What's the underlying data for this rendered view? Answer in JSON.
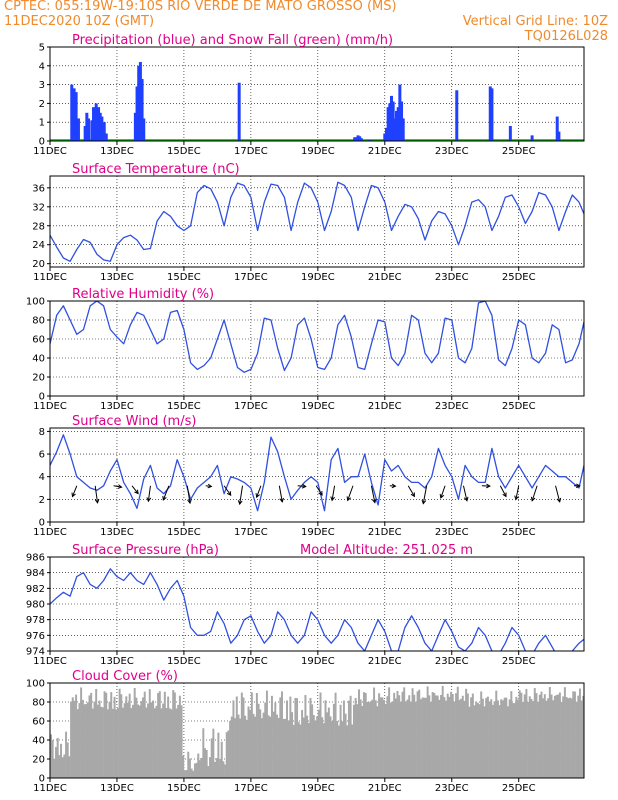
{
  "header": {
    "line1_left": "CPTEC:   055:19W-19:10S  RIO VERDE DE MATO GROSSO (MS)",
    "line2_left": "11DEC2020 10Z (GMT)",
    "line2_right": "Vertical Grid Line: 10Z",
    "line3_right": "TQ0126L028"
  },
  "colors": {
    "precip": "#2040ff",
    "snow": "#00b000",
    "line": "#3050e0",
    "cloud": "#a8a8a8",
    "title": "#e0008a",
    "header": "#f08a2c"
  },
  "x_labels": [
    "11DEC",
    "13DEC",
    "15DEC",
    "17DEC",
    "19DEC",
    "21DEC",
    "23DEC",
    "25DEC"
  ],
  "chart_data": [
    {
      "type": "bar",
      "title": "Precipitation (blue) and Snow Fall (green) (mm/h)",
      "ylim": [
        0,
        5
      ],
      "yticks": [
        0,
        1,
        2,
        3,
        4,
        5
      ],
      "x_unit": "days since 11DEC 10Z",
      "bars": [
        [
          0.65,
          3.0
        ],
        [
          0.72,
          2.8
        ],
        [
          0.78,
          2.6
        ],
        [
          0.85,
          1.2
        ],
        [
          1.05,
          0.8
        ],
        [
          1.1,
          1.5
        ],
        [
          1.15,
          1.2
        ],
        [
          1.25,
          1.1
        ],
        [
          1.3,
          1.8
        ],
        [
          1.38,
          2.0
        ],
        [
          1.45,
          1.8
        ],
        [
          1.5,
          1.5
        ],
        [
          1.55,
          1.3
        ],
        [
          1.62,
          1.0
        ],
        [
          1.68,
          0.4
        ],
        [
          2.55,
          1.5
        ],
        [
          2.6,
          2.9
        ],
        [
          2.65,
          4.0
        ],
        [
          2.7,
          4.2
        ],
        [
          2.75,
          3.3
        ],
        [
          2.8,
          1.2
        ],
        [
          5.65,
          3.1
        ],
        [
          9.1,
          0.2
        ],
        [
          9.15,
          0.2
        ],
        [
          9.2,
          0.3
        ],
        [
          9.25,
          0.25
        ],
        [
          9.3,
          0.15
        ],
        [
          9.55,
          0.05
        ],
        [
          10.0,
          0.4
        ],
        [
          10.05,
          0.7
        ],
        [
          10.1,
          1.8
        ],
        [
          10.15,
          2.0
        ],
        [
          10.2,
          2.4
        ],
        [
          10.25,
          2.1
        ],
        [
          10.3,
          1.2
        ],
        [
          10.35,
          1.6
        ],
        [
          10.4,
          1.8
        ],
        [
          10.45,
          3.0
        ],
        [
          10.5,
          2.1
        ],
        [
          10.55,
          1.2
        ],
        [
          12.15,
          2.7
        ],
        [
          13.15,
          2.9
        ],
        [
          13.2,
          2.8
        ],
        [
          13.75,
          0.8
        ],
        [
          14.4,
          0.3
        ],
        [
          15.15,
          1.3
        ],
        [
          15.2,
          0.5
        ]
      ]
    },
    {
      "type": "line",
      "title": "Surface Temperature (nC)",
      "ylim": [
        19.3,
        38.5
      ],
      "yticks": [
        20,
        24,
        28,
        32,
        36
      ],
      "x": [
        0,
        0.2,
        0.4,
        0.6,
        0.8,
        1.0,
        1.2,
        1.4,
        1.6,
        1.8,
        2.0,
        2.2,
        2.4,
        2.6,
        2.8,
        3.0,
        3.2,
        3.4,
        3.6,
        3.8,
        4.0,
        4.2,
        4.4,
        4.6,
        4.8,
        5.0,
        5.2,
        5.4,
        5.6,
        5.8,
        6.0,
        6.2,
        6.4,
        6.6,
        6.8,
        7.0,
        7.2,
        7.4,
        7.6,
        7.8,
        8.0,
        8.2,
        8.4,
        8.6,
        8.8,
        9.0,
        9.2,
        9.4,
        9.6,
        9.8,
        10.0,
        10.2,
        10.4,
        10.6,
        10.8,
        11.0,
        11.2,
        11.4,
        11.6,
        11.8,
        12.0,
        12.2,
        12.4,
        12.6,
        12.8,
        13.0,
        13.2,
        13.4,
        13.6,
        13.8,
        14.0,
        14.2,
        14.4,
        14.6,
        14.8,
        15.0,
        15.2,
        15.4,
        15.6,
        15.8,
        15.95
      ],
      "values": [
        26,
        23.5,
        21.2,
        20.5,
        23,
        25.1,
        24.5,
        22,
        20.8,
        20.5,
        24,
        25.5,
        26,
        25,
        23,
        23.2,
        29,
        31,
        30,
        28,
        27,
        28,
        35,
        36.5,
        35.8,
        33,
        28,
        34,
        37,
        36.5,
        34,
        27,
        33,
        36.8,
        36.5,
        34,
        27,
        33,
        37,
        36,
        33,
        27,
        31,
        37.2,
        36.5,
        34,
        27,
        32,
        36.5,
        36,
        33,
        27,
        30,
        32.5,
        32,
        29.5,
        25,
        29,
        31,
        30.5,
        28,
        24,
        28,
        33,
        33.5,
        32,
        27,
        30,
        34,
        34.5,
        32,
        28.5,
        31,
        35,
        34.5,
        32,
        27,
        31,
        34.5,
        33,
        30.5
      ]
    },
    {
      "type": "line",
      "title": "Relative Humidity (%)",
      "ylim": [
        0,
        100
      ],
      "yticks": [
        0,
        20,
        40,
        60,
        80,
        100
      ],
      "x": [
        0,
        0.2,
        0.4,
        0.6,
        0.8,
        1.0,
        1.2,
        1.4,
        1.6,
        1.8,
        2.0,
        2.2,
        2.4,
        2.6,
        2.8,
        3.0,
        3.2,
        3.4,
        3.6,
        3.8,
        4.0,
        4.2,
        4.4,
        4.6,
        4.8,
        5.0,
        5.2,
        5.4,
        5.6,
        5.8,
        6.0,
        6.2,
        6.4,
        6.6,
        6.8,
        7.0,
        7.2,
        7.4,
        7.6,
        7.8,
        8.0,
        8.2,
        8.4,
        8.6,
        8.8,
        9.0,
        9.2,
        9.4,
        9.6,
        9.8,
        10.0,
        10.2,
        10.4,
        10.6,
        10.8,
        11.0,
        11.2,
        11.4,
        11.6,
        11.8,
        12.0,
        12.2,
        12.4,
        12.6,
        12.8,
        13.0,
        13.2,
        13.4,
        13.6,
        13.8,
        14.0,
        14.2,
        14.4,
        14.6,
        14.8,
        15.0,
        15.2,
        15.4,
        15.6,
        15.8,
        15.95
      ],
      "values": [
        55,
        85,
        95,
        80,
        65,
        70,
        95,
        100,
        95,
        70,
        62,
        55,
        75,
        88,
        85,
        70,
        55,
        60,
        88,
        90,
        70,
        35,
        28,
        32,
        40,
        60,
        80,
        55,
        30,
        25,
        28,
        45,
        82,
        80,
        50,
        27,
        40,
        75,
        82,
        60,
        30,
        28,
        40,
        75,
        85,
        62,
        30,
        28,
        55,
        80,
        78,
        40,
        32,
        45,
        85,
        80,
        45,
        35,
        45,
        82,
        80,
        40,
        35,
        50,
        98,
        100,
        85,
        38,
        32,
        50,
        80,
        75,
        40,
        35,
        45,
        75,
        70,
        35,
        38,
        55,
        78
      ]
    },
    {
      "type": "line",
      "title": "Surface Wind (m/s)",
      "ylim": [
        0,
        8.3
      ],
      "yticks": [
        0,
        2,
        4,
        6,
        8
      ],
      "x": [
        0,
        0.2,
        0.4,
        0.6,
        0.8,
        1.0,
        1.2,
        1.4,
        1.6,
        1.8,
        2.0,
        2.2,
        2.4,
        2.6,
        2.8,
        3.0,
        3.2,
        3.4,
        3.6,
        3.8,
        4.0,
        4.2,
        4.4,
        4.6,
        4.8,
        5.0,
        5.2,
        5.4,
        5.6,
        5.8,
        6.0,
        6.2,
        6.4,
        6.6,
        6.8,
        7.0,
        7.2,
        7.4,
        7.6,
        7.8,
        8.0,
        8.2,
        8.4,
        8.6,
        8.8,
        9.0,
        9.2,
        9.4,
        9.6,
        9.8,
        10.0,
        10.2,
        10.4,
        10.6,
        10.8,
        11.0,
        11.2,
        11.4,
        11.6,
        11.8,
        12.0,
        12.2,
        12.4,
        12.6,
        12.8,
        13.0,
        13.2,
        13.4,
        13.6,
        13.8,
        14.0,
        14.2,
        14.4,
        14.6,
        14.8,
        15.0,
        15.2,
        15.4,
        15.6,
        15.8,
        15.95
      ],
      "values": [
        5,
        6.2,
        7.7,
        6,
        4,
        3.5,
        3,
        2.8,
        3.2,
        4.5,
        5.5,
        3.5,
        2.5,
        1.2,
        3.8,
        5,
        3,
        2.5,
        3.2,
        5.5,
        4,
        2,
        3,
        3.5,
        4,
        5,
        2.5,
        4,
        3.8,
        3.5,
        3,
        1,
        3.5,
        7.5,
        6.2,
        4,
        2,
        2.8,
        3.5,
        4,
        3.5,
        1,
        5.5,
        6.5,
        3.5,
        4,
        4,
        6,
        3.5,
        1.5,
        5.5,
        4.5,
        5,
        4,
        3.5,
        3.5,
        3,
        4,
        6.5,
        5,
        4,
        2,
        5,
        4,
        3.5,
        3.5,
        6.5,
        4,
        3,
        4,
        5,
        4,
        3,
        4,
        5,
        4.5,
        4,
        4,
        3.5,
        3,
        5
      ]
    },
    {
      "type": "line",
      "title": "Surface Pressure (hPa)",
      "annotation": "Model Altitude: 251.025 m",
      "ylim": [
        974,
        986
      ],
      "yticks": [
        974,
        976,
        978,
        980,
        982,
        984,
        986
      ],
      "x": [
        0,
        0.2,
        0.4,
        0.6,
        0.8,
        1.0,
        1.2,
        1.4,
        1.6,
        1.8,
        2.0,
        2.2,
        2.4,
        2.6,
        2.8,
        3.0,
        3.2,
        3.4,
        3.6,
        3.8,
        4.0,
        4.2,
        4.4,
        4.6,
        4.8,
        5.0,
        5.2,
        5.4,
        5.6,
        5.8,
        6.0,
        6.2,
        6.4,
        6.6,
        6.8,
        7.0,
        7.2,
        7.4,
        7.6,
        7.8,
        8.0,
        8.2,
        8.4,
        8.6,
        8.8,
        9.0,
        9.2,
        9.4,
        9.6,
        9.8,
        10.0,
        10.2,
        10.4,
        10.6,
        10.8,
        11.0,
        11.2,
        11.4,
        11.6,
        11.8,
        12.0,
        12.2,
        12.4,
        12.6,
        12.8,
        13.0,
        13.2,
        13.4,
        13.6,
        13.8,
        14.0,
        14.2,
        14.4,
        14.6,
        14.8,
        15.0,
        15.2,
        15.4,
        15.6,
        15.8,
        15.95
      ],
      "values": [
        980,
        980.8,
        981.5,
        981,
        983.5,
        984,
        982.5,
        982,
        983,
        984.5,
        983.5,
        983,
        984,
        983,
        982.5,
        984,
        982.5,
        980.5,
        982,
        983,
        981,
        977,
        976,
        976,
        976.5,
        979,
        977.5,
        975,
        976,
        978,
        978.5,
        976.5,
        975,
        976,
        979,
        978,
        976,
        975,
        976,
        979,
        978,
        976,
        975,
        976,
        978,
        977,
        975,
        974,
        976,
        978,
        976.5,
        974,
        974,
        977,
        978.5,
        977,
        975,
        974,
        976,
        978,
        976.5,
        974.5,
        974,
        975,
        977,
        976,
        974,
        973.5,
        975,
        977,
        976,
        974,
        973.5,
        975,
        976,
        974.5,
        973,
        973.5,
        974,
        975,
        975.5
      ]
    },
    {
      "type": "bar",
      "title": "Cloud Cover (%)",
      "ylim": [
        0,
        100
      ],
      "yticks": [
        0,
        20,
        40,
        60,
        80,
        100
      ],
      "x_step": 0.05,
      "segments": [
        [
          0.0,
          0.6,
          20,
          50
        ],
        [
          0.6,
          2.0,
          72,
          96
        ],
        [
          2.0,
          3.9,
          72,
          96
        ],
        [
          3.9,
          4.4,
          5,
          30
        ],
        [
          4.4,
          5.3,
          12,
          58
        ],
        [
          5.3,
          7.2,
          60,
          95
        ],
        [
          7.2,
          9.0,
          55,
          92
        ],
        [
          9.0,
          10.2,
          75,
          96
        ],
        [
          10.2,
          12.5,
          80,
          97
        ],
        [
          12.5,
          13.9,
          75,
          92
        ],
        [
          13.9,
          15.95,
          80,
          96
        ]
      ]
    }
  ]
}
